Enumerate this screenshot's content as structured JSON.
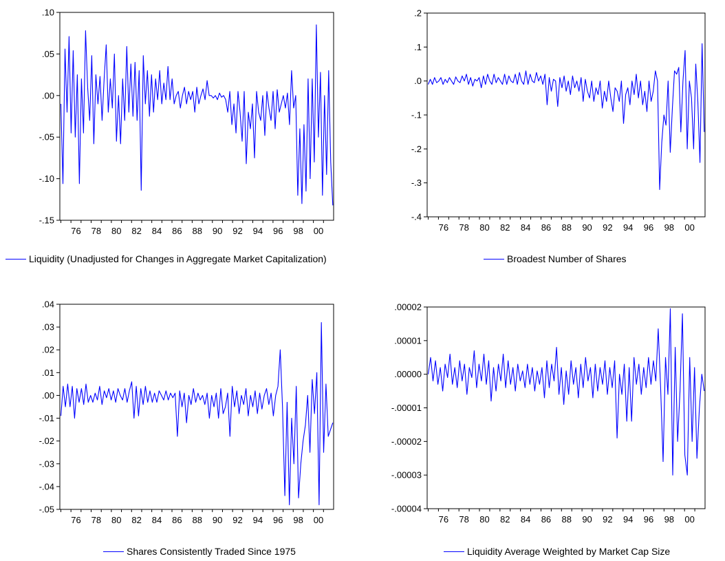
{
  "chart_data": [
    {
      "type": "line",
      "color": "#0000ff",
      "x_start": 1975.0,
      "x_end": 2001.92,
      "xlim": [
        1974.9,
        2002.0
      ],
      "xticks": [
        "76",
        "78",
        "80",
        "82",
        "84",
        "86",
        "88",
        "90",
        "92",
        "94",
        "96",
        "98",
        "00"
      ],
      "xtick_years": [
        1976,
        1978,
        1980,
        1982,
        1984,
        1986,
        1988,
        1990,
        1992,
        1994,
        1996,
        1998,
        2000
      ],
      "ylim": [
        -0.15,
        0.1
      ],
      "yticks": [
        {
          "value": 0.1,
          "label": ".10"
        },
        {
          "value": 0.05,
          "label": ".05"
        },
        {
          "value": 0.0,
          "label": ".00"
        },
        {
          "value": -0.05,
          "label": "-.05"
        },
        {
          "value": -0.1,
          "label": "-.10"
        },
        {
          "value": -0.15,
          "label": "-.15"
        }
      ],
      "series": [
        {
          "name": "Liquidity (Unadjusted for Changes in Aggregate Market Capitalization)",
          "values": [
            -0.01,
            -0.106,
            0.056,
            -0.02,
            0.071,
            -0.045,
            0.054,
            -0.05,
            0.025,
            -0.106,
            0.02,
            -0.045,
            0.078,
            0.01,
            -0.03,
            0.048,
            -0.058,
            0.025,
            -0.01,
            0.023,
            -0.03,
            0.02,
            0.061,
            -0.02,
            0.02,
            -0.015,
            0.05,
            -0.055,
            0.0,
            -0.058,
            0.02,
            -0.03,
            0.059,
            -0.02,
            0.038,
            -0.025,
            0.04,
            -0.03,
            0.03,
            -0.114,
            0.048,
            -0.01,
            0.03,
            -0.025,
            0.025,
            -0.02,
            0.02,
            -0.005,
            0.03,
            -0.01,
            0.015,
            -0.005,
            0.035,
            -0.005,
            0.02,
            -0.01,
            0.0,
            0.005,
            -0.015,
            0.0,
            0.01,
            -0.01,
            0.005,
            -0.005,
            0.005,
            -0.02,
            0.01,
            -0.01,
            0.0,
            0.008,
            -0.005,
            0.018,
            0.0,
            0.0,
            -0.003,
            0.0,
            -0.005,
            0.003,
            -0.002,
            0.0,
            -0.005,
            -0.02,
            0.005,
            -0.035,
            -0.01,
            -0.045,
            0.005,
            -0.02,
            -0.055,
            0.005,
            -0.082,
            -0.02,
            -0.04,
            -0.01,
            -0.075,
            0.005,
            -0.02,
            -0.03,
            0.0,
            -0.048,
            0.005,
            -0.015,
            -0.03,
            0.005,
            -0.04,
            0.007,
            -0.02,
            -0.01,
            0.0,
            -0.015,
            0.003,
            -0.035,
            0.03,
            -0.015,
            0.0,
            -0.12,
            -0.04,
            -0.13,
            -0.035,
            -0.115,
            0.02,
            -0.1,
            0.02,
            -0.08,
            0.085,
            -0.05,
            0.028,
            -0.12,
            0.0,
            -0.095,
            0.03,
            -0.08,
            -0.132
          ]
        }
      ]
    },
    {
      "type": "line",
      "color": "#0000ff",
      "x_start": 1975.0,
      "x_end": 2001.92,
      "xlim": [
        1974.9,
        2002.0
      ],
      "xticks": [
        "76",
        "78",
        "80",
        "82",
        "84",
        "86",
        "88",
        "90",
        "92",
        "94",
        "96",
        "98",
        "00"
      ],
      "xtick_years": [
        1976,
        1978,
        1980,
        1982,
        1984,
        1986,
        1988,
        1990,
        1992,
        1994,
        1996,
        1998,
        2000
      ],
      "ylim": [
        -0.4,
        0.2
      ],
      "yticks": [
        {
          "value": 0.2,
          "label": ".2"
        },
        {
          "value": 0.1,
          "label": ".1"
        },
        {
          "value": 0.0,
          "label": ".0"
        },
        {
          "value": -0.1,
          "label": "-.1"
        },
        {
          "value": -0.2,
          "label": "-.2"
        },
        {
          "value": -0.3,
          "label": "-.3"
        },
        {
          "value": -0.4,
          "label": "-.4"
        }
      ],
      "series": [
        {
          "name": "Broadest Number of Shares",
          "values": [
            -0.01,
            0.005,
            -0.01,
            0.01,
            -0.005,
            0.0,
            0.01,
            -0.01,
            0.005,
            -0.005,
            0.01,
            0.0,
            -0.01,
            0.012,
            0.0,
            -0.005,
            0.015,
            0.0,
            0.02,
            -0.01,
            0.01,
            -0.015,
            0.005,
            0.0,
            0.01,
            -0.02,
            0.015,
            -0.01,
            0.02,
            0.0,
            -0.01,
            0.02,
            -0.005,
            0.01,
            0.0,
            -0.01,
            0.02,
            -0.01,
            0.015,
            0.0,
            -0.005,
            0.02,
            -0.01,
            0.025,
            0.0,
            -0.01,
            0.03,
            -0.01,
            0.02,
            0.0,
            -0.005,
            0.025,
            0.0,
            0.015,
            -0.01,
            0.02,
            -0.07,
            0.01,
            -0.03,
            0.005,
            0.0,
            -0.075,
            0.01,
            -0.02,
            0.015,
            -0.03,
            0.0,
            -0.04,
            0.015,
            -0.02,
            0.0,
            -0.03,
            0.01,
            -0.06,
            0.005,
            -0.03,
            -0.05,
            0.0,
            -0.06,
            -0.02,
            -0.04,
            0.0,
            -0.08,
            -0.03,
            -0.06,
            0.0,
            -0.05,
            -0.09,
            -0.02,
            -0.03,
            -0.06,
            0.0,
            -0.125,
            -0.04,
            -0.02,
            -0.07,
            0.0,
            -0.04,
            0.02,
            -0.05,
            0.0,
            -0.07,
            -0.03,
            -0.09,
            0.0,
            -0.06,
            -0.03,
            0.03,
            0.0,
            -0.32,
            -0.18,
            -0.1,
            -0.13,
            0.0,
            -0.21,
            -0.08,
            0.03,
            0.02,
            0.04,
            -0.15,
            0.0,
            0.09,
            -0.2,
            0.0,
            -0.05,
            -0.2,
            0.05,
            -0.06,
            -0.24,
            0.11,
            -0.15
          ]
        }
      ]
    },
    {
      "type": "line",
      "color": "#0000ff",
      "x_start": 1975.0,
      "x_end": 2001.92,
      "xlim": [
        1974.9,
        2002.0
      ],
      "xticks": [
        "76",
        "78",
        "80",
        "82",
        "84",
        "86",
        "88",
        "90",
        "92",
        "94",
        "96",
        "98",
        "00"
      ],
      "xtick_years": [
        1976,
        1978,
        1980,
        1982,
        1984,
        1986,
        1988,
        1990,
        1992,
        1994,
        1996,
        1998,
        2000
      ],
      "ylim": [
        -0.05,
        0.04
      ],
      "yticks": [
        {
          "value": 0.04,
          "label": ".04"
        },
        {
          "value": 0.03,
          "label": ".03"
        },
        {
          "value": 0.02,
          "label": ".02"
        },
        {
          "value": 0.01,
          "label": ".01"
        },
        {
          "value": 0.0,
          "label": ".00"
        },
        {
          "value": -0.01,
          "label": "-.01"
        },
        {
          "value": -0.02,
          "label": "-.02"
        },
        {
          "value": -0.03,
          "label": "-.03"
        },
        {
          "value": -0.04,
          "label": "-.04"
        },
        {
          "value": -0.05,
          "label": "-.05"
        }
      ],
      "series": [
        {
          "name": "Shares Consistently Traded Since 1975",
          "values": [
            -0.009,
            0.004,
            -0.005,
            0.005,
            -0.005,
            0.004,
            -0.01,
            0.003,
            -0.003,
            0.003,
            -0.004,
            0.005,
            -0.003,
            0.0,
            -0.003,
            0.001,
            -0.002,
            0.004,
            -0.004,
            0.002,
            -0.001,
            0.003,
            -0.002,
            0.002,
            -0.003,
            0.003,
            0.0,
            -0.002,
            0.003,
            -0.003,
            0.002,
            0.006,
            -0.01,
            0.004,
            -0.009,
            0.003,
            -0.004,
            0.004,
            -0.003,
            0.002,
            -0.003,
            0.001,
            -0.003,
            0.002,
            0.0,
            -0.002,
            0.002,
            -0.002,
            0.001,
            -0.001,
            0.001,
            -0.018,
            0.002,
            -0.005,
            0.001,
            -0.012,
            0.0,
            -0.004,
            0.003,
            -0.003,
            0.001,
            -0.002,
            0.0,
            -0.004,
            0.001,
            -0.01,
            0.0,
            -0.005,
            0.001,
            -0.01,
            0.003,
            -0.008,
            -0.005,
            0.001,
            -0.018,
            0.004,
            -0.005,
            0.002,
            -0.008,
            0.0,
            -0.004,
            0.003,
            -0.009,
            0.0,
            -0.005,
            0.002,
            -0.008,
            0.001,
            -0.006,
            0.0,
            0.003,
            -0.004,
            0.001,
            -0.009,
            0.0,
            0.004,
            0.02,
            -0.005,
            -0.044,
            -0.003,
            -0.048,
            -0.01,
            -0.03,
            0.004,
            -0.045,
            -0.03,
            -0.02,
            -0.013,
            0.0,
            -0.025,
            0.007,
            -0.008,
            0.01,
            -0.048,
            0.032,
            -0.025,
            0.005,
            -0.018,
            -0.015,
            -0.012
          ]
        }
      ]
    },
    {
      "type": "line",
      "color": "#0000ff",
      "x_start": 1975.0,
      "x_end": 2001.92,
      "xlim": [
        1974.9,
        2002.0
      ],
      "xticks": [
        "76",
        "78",
        "80",
        "82",
        "84",
        "86",
        "88",
        "90",
        "92",
        "94",
        "96",
        "98",
        "00"
      ],
      "xtick_years": [
        1976,
        1978,
        1980,
        1982,
        1984,
        1986,
        1988,
        1990,
        1992,
        1994,
        1996,
        1998,
        2000
      ],
      "ylim": [
        -4e-05,
        2e-05
      ],
      "yticks": [
        {
          "value": 2e-05,
          "label": ".00002"
        },
        {
          "value": 1e-05,
          "label": ".00001"
        },
        {
          "value": 0.0,
          "label": ".00000"
        },
        {
          "value": -1e-05,
          "label": "-.00001"
        },
        {
          "value": -2e-05,
          "label": "-.00002"
        },
        {
          "value": -3e-05,
          "label": "-.00003"
        },
        {
          "value": -4e-05,
          "label": "-.00004"
        }
      ],
      "series": [
        {
          "name": "Liquidity Average Weighted by Market Cap Size",
          "values": [
            0.0,
            5e-06,
            -2e-06,
            4e-06,
            -3e-06,
            2e-06,
            -5e-06,
            3e-06,
            -1e-06,
            6e-06,
            -3e-06,
            2e-06,
            -4e-06,
            4e-06,
            -2e-06,
            3e-06,
            -6e-06,
            2e-06,
            -1e-06,
            7e-06,
            -4e-06,
            3e-06,
            -2e-06,
            6e-06,
            -3e-06,
            4e-06,
            -8e-06,
            2e-06,
            -5e-06,
            3e-06,
            -2e-06,
            6e-06,
            -4e-06,
            4e-06,
            -3e-06,
            2e-06,
            -5e-06,
            3e-06,
            -2e-06,
            1e-06,
            -4e-06,
            3e-06,
            -3e-06,
            2e-06,
            -5e-06,
            1e-06,
            -3e-06,
            2e-06,
            -7e-06,
            4e-06,
            -4e-06,
            3e-06,
            -2e-06,
            8e-06,
            -6e-06,
            2e-06,
            -9e-06,
            1e-06,
            -6e-06,
            4e-06,
            -3e-06,
            2e-06,
            -7e-06,
            3e-06,
            -4e-06,
            5e-06,
            -2e-06,
            2e-06,
            -7e-06,
            3e-06,
            -5e-06,
            2e-06,
            -3e-06,
            4e-06,
            -6e-06,
            2e-06,
            -4e-06,
            4e-06,
            -1.9e-05,
            0.0,
            -6e-06,
            3e-06,
            -1.4e-05,
            2e-06,
            -1.4e-05,
            5e-06,
            -3e-06,
            3e-06,
            -6e-06,
            2e-06,
            -4e-06,
            5e-06,
            -3e-06,
            4e-06,
            -2e-06,
            1.35e-05,
            -4e-06,
            -2.6e-05,
            5e-06,
            -6e-06,
            1.95e-05,
            -3e-05,
            8e-06,
            -2e-05,
            -5e-06,
            1.8e-05,
            -2.4e-05,
            -3e-05,
            5e-06,
            -2e-05,
            2e-06,
            -2.5e-05,
            -1e-05,
            0.0,
            -5e-06
          ]
        }
      ]
    }
  ]
}
